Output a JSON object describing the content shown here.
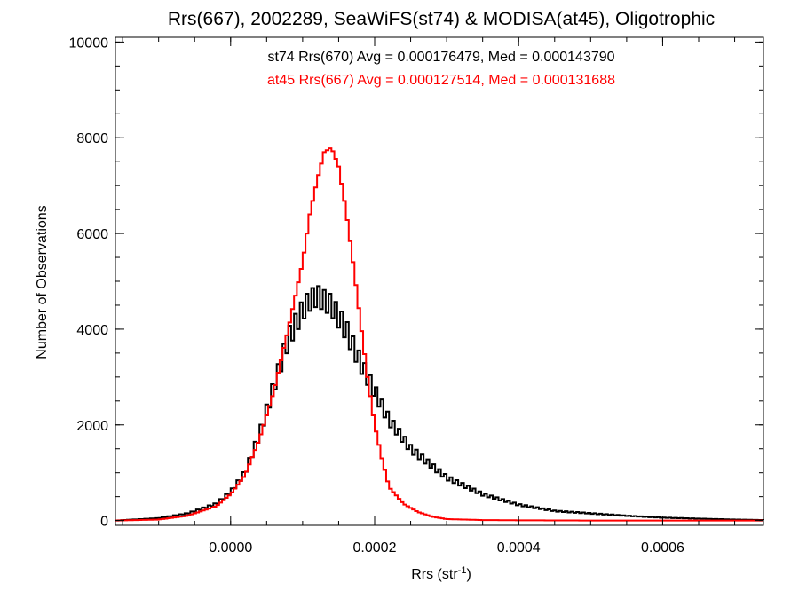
{
  "chart_data": {
    "type": "line",
    "title": "Rrs(667), 2002289, SeaWiFS(st74) & MODISA(at45), Oligotrophic",
    "xlabel": "Rrs (str",
    "xlabel_superscript": "-1",
    "xlabel_suffix": ")",
    "ylabel": "Number of Observations",
    "xlim": [
      -0.00016,
      0.00074
    ],
    "ylim": [
      -100,
      10100
    ],
    "xticks": [
      0.0,
      0.0002,
      0.0004,
      0.0006
    ],
    "xtick_labels": [
      "0.0000",
      "0.0002",
      "0.0004",
      "0.0006"
    ],
    "yticks": [
      0,
      2000,
      4000,
      6000,
      8000,
      10000
    ],
    "ytick_labels": [
      "0",
      "2000",
      "4000",
      "6000",
      "8000",
      "10000"
    ],
    "grid": false,
    "annotations": [
      {
        "text": "st74 Rrs(670) Avg = 0.000176479, Med = 0.000143790",
        "color": "#000000"
      },
      {
        "text": "at45 Rrs(667) Avg = 0.000127514, Med = 0.000131688",
        "color": "#ff0000"
      }
    ],
    "series": [
      {
        "color": "#000000",
        "style": "noisy-step",
        "x": [
          -0.00016,
          -0.0001,
          -6e-05,
          -2e-05,
          0.0,
          2e-05,
          4e-05,
          6e-05,
          8e-05,
          0.0001,
          0.00011,
          0.00012,
          0.00013,
          0.00014,
          0.00016,
          0.00018,
          0.0002,
          0.00022,
          0.00025,
          0.0003,
          0.00035,
          0.0004,
          0.00045,
          0.0005,
          0.00055,
          0.0006,
          0.00065,
          0.0007,
          0.00074
        ],
        "y": [
          0,
          50,
          150,
          350,
          600,
          1000,
          1800,
          2800,
          3800,
          4400,
          4600,
          4700,
          4600,
          4500,
          4000,
          3300,
          2700,
          2100,
          1500,
          900,
          550,
          330,
          200,
          150,
          100,
          60,
          40,
          20,
          10
        ]
      },
      {
        "color": "#ff0000",
        "style": "step",
        "x": [
          -0.00016,
          -0.0001,
          -6e-05,
          -2e-05,
          0.0,
          2e-05,
          4e-05,
          6e-05,
          8e-05,
          0.0001,
          0.00011,
          0.00012,
          0.00013,
          0.00014,
          0.00015,
          0.00016,
          0.00017,
          0.00018,
          0.00019,
          0.0002,
          0.00021,
          0.00022,
          0.00024,
          0.00026,
          0.00028,
          0.0003,
          0.00035,
          0.0004,
          0.0005,
          0.0006,
          0.00074
        ],
        "y": [
          0,
          20,
          100,
          300,
          550,
          950,
          1700,
          2700,
          4000,
          5400,
          6400,
          7100,
          7700,
          7800,
          7400,
          6500,
          5400,
          4200,
          3000,
          2000,
          1300,
          700,
          350,
          180,
          80,
          30,
          10,
          5,
          0,
          0,
          0
        ]
      }
    ]
  }
}
